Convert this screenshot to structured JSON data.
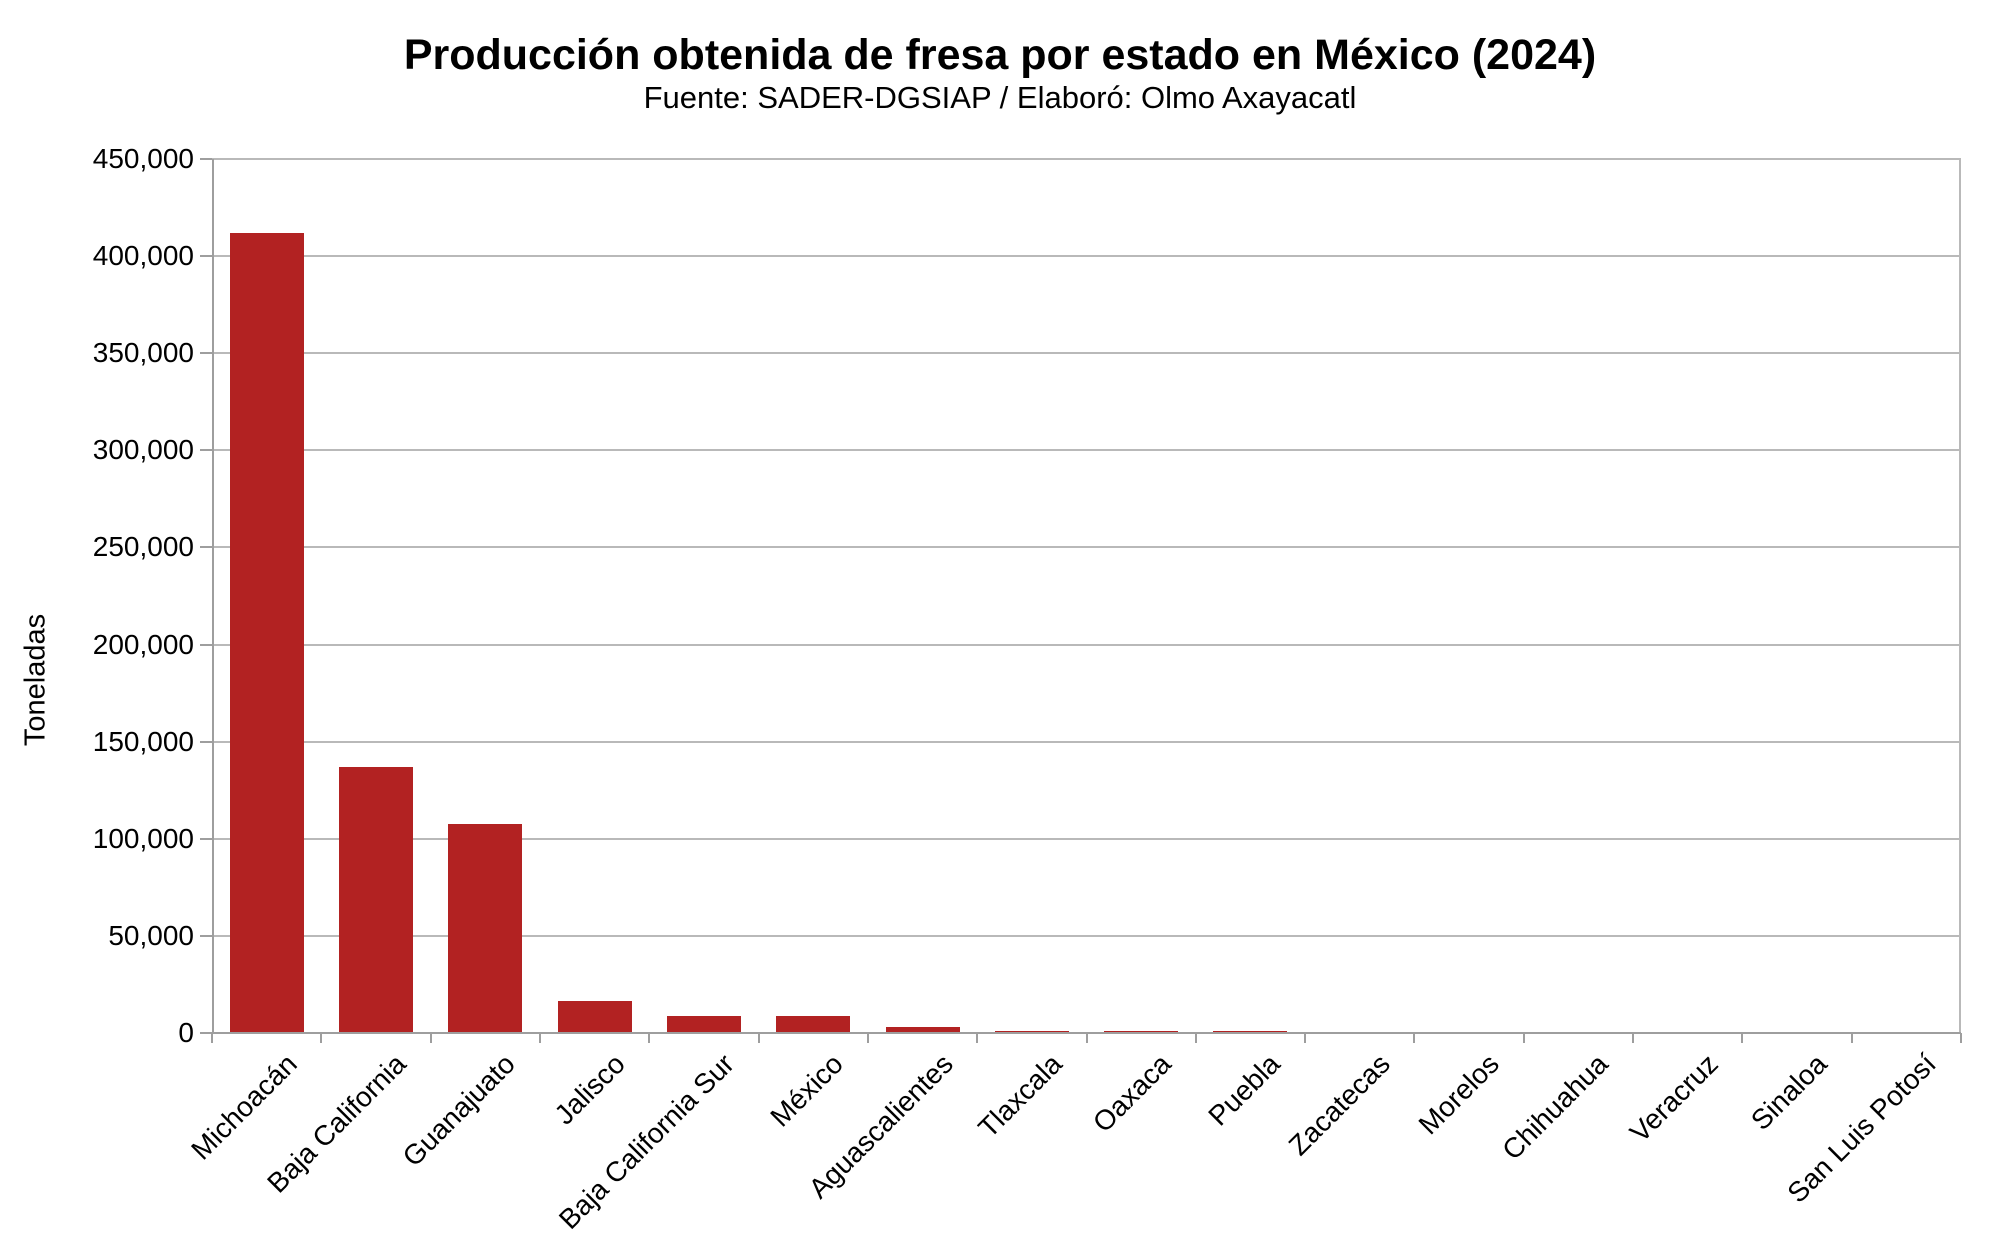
{
  "page": {
    "title": "Producción obtenida de fresa por estado en México (2024)",
    "subtitle": "Fuente: SADER-DGSIAP / Elaboró: Olmo Axayacatl"
  },
  "chart_data": {
    "type": "bar",
    "title": "Producción obtenida de fresa por estado en México (2024)",
    "subtitle": "Fuente: SADER-DGSIAP / Elaboró: Olmo Axayacatl",
    "xlabel": "",
    "ylabel": "Toneladas",
    "categories": [
      "Michoacán",
      "Baja California",
      "Guanajuato",
      "Jalisco",
      "Baja California Sur",
      "México",
      "Aguascalientes",
      "Tlaxcala",
      "Oaxaca",
      "Puebla",
      "Zacatecas",
      "Morelos",
      "Chihuahua",
      "Veracruz",
      "Sinaloa",
      "San Luis Potosí"
    ],
    "values": [
      412000,
      137000,
      107600,
      16500,
      8900,
      8800,
      3000,
      1200,
      1150,
      880,
      770,
      670,
      550,
      500,
      450,
      80
    ],
    "ylim": [
      0,
      450000
    ],
    "ytick_step": 50000,
    "ytick_labels": [
      "0",
      "50,000",
      "100,000",
      "150,000",
      "200,000",
      "250,000",
      "300,000",
      "350,000",
      "400,000",
      "450,000"
    ],
    "grid": "horizontal gridlines on",
    "legend": "none",
    "colors": {
      "bar": "#b22222",
      "gridline": "#b9b9b9",
      "axis": "#9e9e9e",
      "text": "#000000"
    }
  }
}
